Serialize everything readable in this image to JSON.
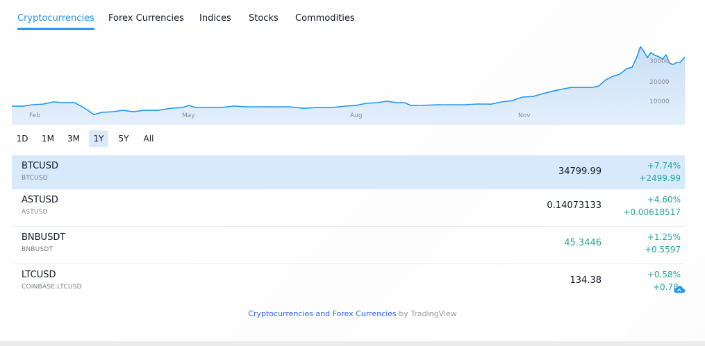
{
  "tabs": [
    {
      "label": "Cryptocurrencies",
      "active": true
    },
    {
      "label": "Forex Currencies",
      "active": false
    },
    {
      "label": "Indices",
      "active": false
    },
    {
      "label": "Stocks",
      "active": false
    },
    {
      "label": "Commodities",
      "active": false
    }
  ],
  "chart": {
    "x_ticks": [
      "Feb",
      "May",
      "Aug",
      "Nov"
    ],
    "y_ticks": [
      "30000",
      "20000",
      "10000"
    ],
    "line_color": "#2196f3",
    "area_color": "#d3e6f9"
  },
  "ranges": [
    {
      "label": "1D",
      "active": false
    },
    {
      "label": "1M",
      "active": false
    },
    {
      "label": "3M",
      "active": false
    },
    {
      "label": "1Y",
      "active": true
    },
    {
      "label": "5Y",
      "active": false
    },
    {
      "label": "All",
      "active": false
    }
  ],
  "symbols": [
    {
      "name": "BTCUSD",
      "desc": "BTCUSD",
      "last": "34799.99",
      "pct": "+7.74%",
      "abs": "+2499.99"
    },
    {
      "name": "ASTUSD",
      "desc": "ASTUSD",
      "last": "0.14073133",
      "pct": "+4.60%",
      "abs": "+0.00618517"
    },
    {
      "name": "BNBUSDT",
      "desc": "BNBUSDT",
      "last": "45.3446",
      "pct": "+1.25%",
      "abs": "+0.5597"
    },
    {
      "name": "LTCUSD",
      "desc": "COINBASE:LTCUSD",
      "last": "134.38",
      "pct": "+0.58%",
      "abs": "+0.78"
    }
  ],
  "footer": {
    "link": "Cryptocurrencies and Forex Currencies",
    "suffix": " by TradingView"
  },
  "colors": {
    "accent": "#2196f3",
    "positive": "#26a69a",
    "selected_row": "#d7e9fb"
  },
  "icons": {
    "corner": "cloud-icon"
  }
}
